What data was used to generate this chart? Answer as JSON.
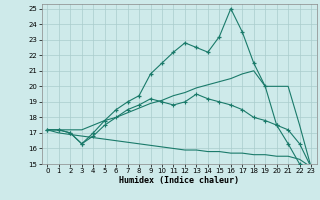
{
  "xlabel": "Humidex (Indice chaleur)",
  "background_color": "#ceeaea",
  "grid_color": "#aacccc",
  "line_color": "#1a7a6a",
  "xlim": [
    -0.5,
    23.5
  ],
  "ylim": [
    15,
    25.3
  ],
  "xticks": [
    0,
    1,
    2,
    3,
    4,
    5,
    6,
    7,
    8,
    9,
    10,
    11,
    12,
    13,
    14,
    15,
    16,
    17,
    18,
    19,
    20,
    21,
    22,
    23
  ],
  "yticks": [
    15,
    16,
    17,
    18,
    19,
    20,
    21,
    22,
    23,
    24,
    25
  ],
  "line_peaked_x": [
    0,
    1,
    2,
    3,
    4,
    5,
    6,
    7,
    8,
    9,
    10,
    11,
    12,
    13,
    14,
    15,
    16,
    17,
    18,
    19,
    20,
    21,
    22,
    23
  ],
  "line_peaked_y": [
    17.2,
    17.2,
    17.0,
    16.3,
    17.0,
    17.8,
    18.5,
    19.0,
    19.4,
    20.8,
    21.5,
    22.2,
    22.8,
    22.5,
    22.2,
    23.2,
    25.0,
    23.5,
    21.5,
    20.0,
    17.5,
    16.3,
    15.0,
    14.8
  ],
  "line_upper_x": [
    0,
    1,
    2,
    3,
    4,
    5,
    6,
    7,
    8,
    9,
    10,
    11,
    12,
    13,
    14,
    15,
    16,
    17,
    18,
    19,
    20,
    21,
    22,
    23
  ],
  "line_upper_y": [
    17.2,
    17.2,
    17.0,
    16.3,
    16.8,
    17.5,
    18.0,
    18.5,
    18.8,
    19.2,
    19.0,
    18.8,
    19.0,
    19.5,
    19.2,
    19.0,
    18.8,
    18.5,
    18.0,
    17.8,
    17.5,
    17.2,
    16.3,
    14.8
  ],
  "line_mid_x": [
    0,
    1,
    2,
    3,
    4,
    5,
    6,
    7,
    8,
    9,
    10,
    11,
    12,
    13,
    14,
    15,
    16,
    17,
    18,
    19,
    20,
    21,
    22,
    23
  ],
  "line_mid_y": [
    17.2,
    17.2,
    17.2,
    17.2,
    17.5,
    17.8,
    18.0,
    18.3,
    18.6,
    18.9,
    19.1,
    19.4,
    19.6,
    19.9,
    20.1,
    20.3,
    20.5,
    20.8,
    21.0,
    20.0,
    20.0,
    20.0,
    17.5,
    14.8
  ],
  "line_lower_x": [
    0,
    1,
    2,
    3,
    4,
    5,
    6,
    7,
    8,
    9,
    10,
    11,
    12,
    13,
    14,
    15,
    16,
    17,
    18,
    19,
    20,
    21,
    22,
    23
  ],
  "line_lower_y": [
    17.2,
    17.0,
    16.9,
    16.8,
    16.7,
    16.6,
    16.5,
    16.4,
    16.3,
    16.2,
    16.1,
    16.0,
    15.9,
    15.9,
    15.8,
    15.8,
    15.7,
    15.7,
    15.6,
    15.6,
    15.5,
    15.5,
    15.3,
    14.8
  ]
}
